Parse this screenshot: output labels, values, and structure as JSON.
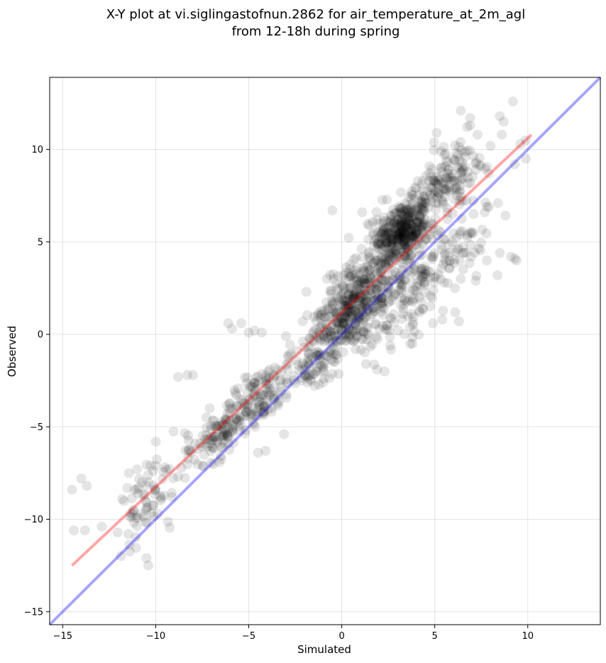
{
  "chart_data": {
    "type": "scatter",
    "title": "X-Y plot at vi.siglingastofnun.2862 for air_temperature_at_2m_agl",
    "subtitle": "from 12-18h during spring",
    "xlabel": "Simulated",
    "ylabel": "Observed",
    "xlim": [
      -15.7,
      13.9
    ],
    "ylim": [
      -15.7,
      13.9
    ],
    "xticks": [
      -15,
      -10,
      -5,
      0,
      5,
      10
    ],
    "yticks": [
      -15,
      -10,
      -5,
      0,
      5,
      10
    ],
    "xtick_labels": [
      "−15",
      "−10",
      "−5",
      "0",
      "5",
      "10"
    ],
    "ytick_labels": [
      "−15",
      "−10",
      "−5",
      "0",
      "5",
      "10"
    ],
    "grid": true,
    "marker_color": "#000000",
    "marker_alpha": 0.1,
    "identity_line": {
      "color": "#0000ff",
      "alpha": 0.35,
      "x": [
        -15.7,
        13.9
      ],
      "y": [
        -15.7,
        13.9
      ]
    },
    "fit_line": {
      "color": "#ff0000",
      "alpha": 0.35,
      "x": [
        -14.5,
        10.2
      ],
      "y": [
        -12.5,
        10.8
      ]
    },
    "outliers": [
      [
        -14.5,
        -8.4
      ],
      [
        -14.0,
        -7.8
      ],
      [
        -13.7,
        -8.2
      ],
      [
        -14.4,
        -10.6
      ],
      [
        -13.8,
        -10.6
      ],
      [
        -12.9,
        -10.4
      ],
      [
        -11.8,
        -8.9
      ],
      [
        -10.4,
        -12.5
      ],
      [
        -10.5,
        -12.1
      ],
      [
        -8.8,
        -2.3
      ],
      [
        -8.3,
        -2.2
      ],
      [
        -8.0,
        -2.2
      ],
      [
        -6.1,
        0.6
      ],
      [
        -5.9,
        0.3
      ],
      [
        -5.4,
        0.6
      ],
      [
        -5.0,
        0.1
      ],
      [
        -4.7,
        0.2
      ],
      [
        -4.3,
        0.1
      ],
      [
        -1.9,
        2.3
      ],
      [
        -0.5,
        6.7
      ],
      [
        1.1,
        6.6
      ],
      [
        1.3,
        -1.6
      ],
      [
        1.9,
        -1.9
      ],
      [
        2.3,
        -2.0
      ],
      [
        4.2,
        1.2
      ],
      [
        4.9,
        0.6
      ],
      [
        5.4,
        0.8
      ],
      [
        5.1,
        10.9
      ],
      [
        5.7,
        9.3
      ],
      [
        6.4,
        12.1
      ],
      [
        6.9,
        11.7
      ],
      [
        6.9,
        11.3
      ],
      [
        7.3,
        10.8
      ],
      [
        8.0,
        10.2
      ],
      [
        8.5,
        11.8
      ],
      [
        8.7,
        11.5
      ],
      [
        8.6,
        10.8
      ],
      [
        9.2,
        12.6
      ],
      [
        9.6,
        10.3
      ],
      [
        9.3,
        9.2
      ],
      [
        9.9,
        9.5
      ],
      [
        9.9,
        10.5
      ],
      [
        6.1,
        1.2
      ],
      [
        6.3,
        0.7
      ],
      [
        8.5,
        4.4
      ],
      [
        9.1,
        4.2
      ],
      [
        9.4,
        4.0
      ],
      [
        9.3,
        4.1
      ],
      [
        8.4,
        7.1
      ],
      [
        7.8,
        6.9
      ],
      [
        3.8,
        -0.5
      ],
      [
        -4.1,
        -6.3
      ],
      [
        -7.1,
        -4.0
      ],
      [
        -11.0,
        -7.3
      ],
      [
        -10.0,
        -7.1
      ],
      [
        -10.5,
        -9.4
      ],
      [
        -9.9,
        -9.7
      ],
      [
        -11.2,
        -9.5
      ],
      [
        -3.1,
        -5.4
      ],
      [
        -4.5,
        -6.4
      ],
      [
        -2.9,
        -1.2
      ],
      [
        -1.0,
        -2.6
      ],
      [
        -3.0,
        -0.1
      ],
      [
        1.5,
        4.1
      ],
      [
        2.6,
        -0.6
      ],
      [
        7.2,
        2.9
      ],
      [
        6.4,
        3.0
      ],
      [
        5.5,
        2.8
      ],
      [
        7.8,
        4.0
      ]
    ],
    "clusters": [
      {
        "cx": 3.2,
        "cy": 5.5,
        "sx": 0.7,
        "sy": 0.8,
        "rho": 0.2,
        "n": 300
      },
      {
        "cx": 1.2,
        "cy": 2.5,
        "sx": 1.1,
        "sy": 1.0,
        "rho": 0.5,
        "n": 260
      },
      {
        "cx": 4.5,
        "cy": 7.2,
        "sx": 1.1,
        "sy": 1.1,
        "rho": 0.6,
        "n": 140
      },
      {
        "cx": 6.0,
        "cy": 8.5,
        "sx": 1.0,
        "sy": 1.2,
        "rho": 0.5,
        "n": 80
      },
      {
        "cx": 0.2,
        "cy": 0.8,
        "sx": 0.9,
        "sy": 0.8,
        "rho": 0.4,
        "n": 150
      },
      {
        "cx": -1.6,
        "cy": -1.5,
        "sx": 1.0,
        "sy": 1.0,
        "rho": 0.6,
        "n": 110
      },
      {
        "cx": -4.6,
        "cy": -3.5,
        "sx": 1.0,
        "sy": 0.9,
        "rho": 0.6,
        "n": 130
      },
      {
        "cx": -6.8,
        "cy": -5.6,
        "sx": 0.8,
        "sy": 0.7,
        "rho": 0.5,
        "n": 90
      },
      {
        "cx": -9.8,
        "cy": -8.0,
        "sx": 0.7,
        "sy": 1.0,
        "rho": 0.2,
        "n": 40
      },
      {
        "cx": -11.0,
        "cy": -9.8,
        "sx": 0.5,
        "sy": 0.8,
        "rho": 0.2,
        "n": 30
      },
      {
        "cx": 3.8,
        "cy": 2.8,
        "sx": 1.0,
        "sy": 1.2,
        "rho": 0.4,
        "n": 100
      },
      {
        "cx": 6.3,
        "cy": 4.8,
        "sx": 1.0,
        "sy": 1.1,
        "rho": 0.5,
        "n": 60
      },
      {
        "cx": 2.0,
        "cy": 0.5,
        "sx": 1.2,
        "sy": 1.0,
        "rho": 0.3,
        "n": 60
      }
    ]
  }
}
